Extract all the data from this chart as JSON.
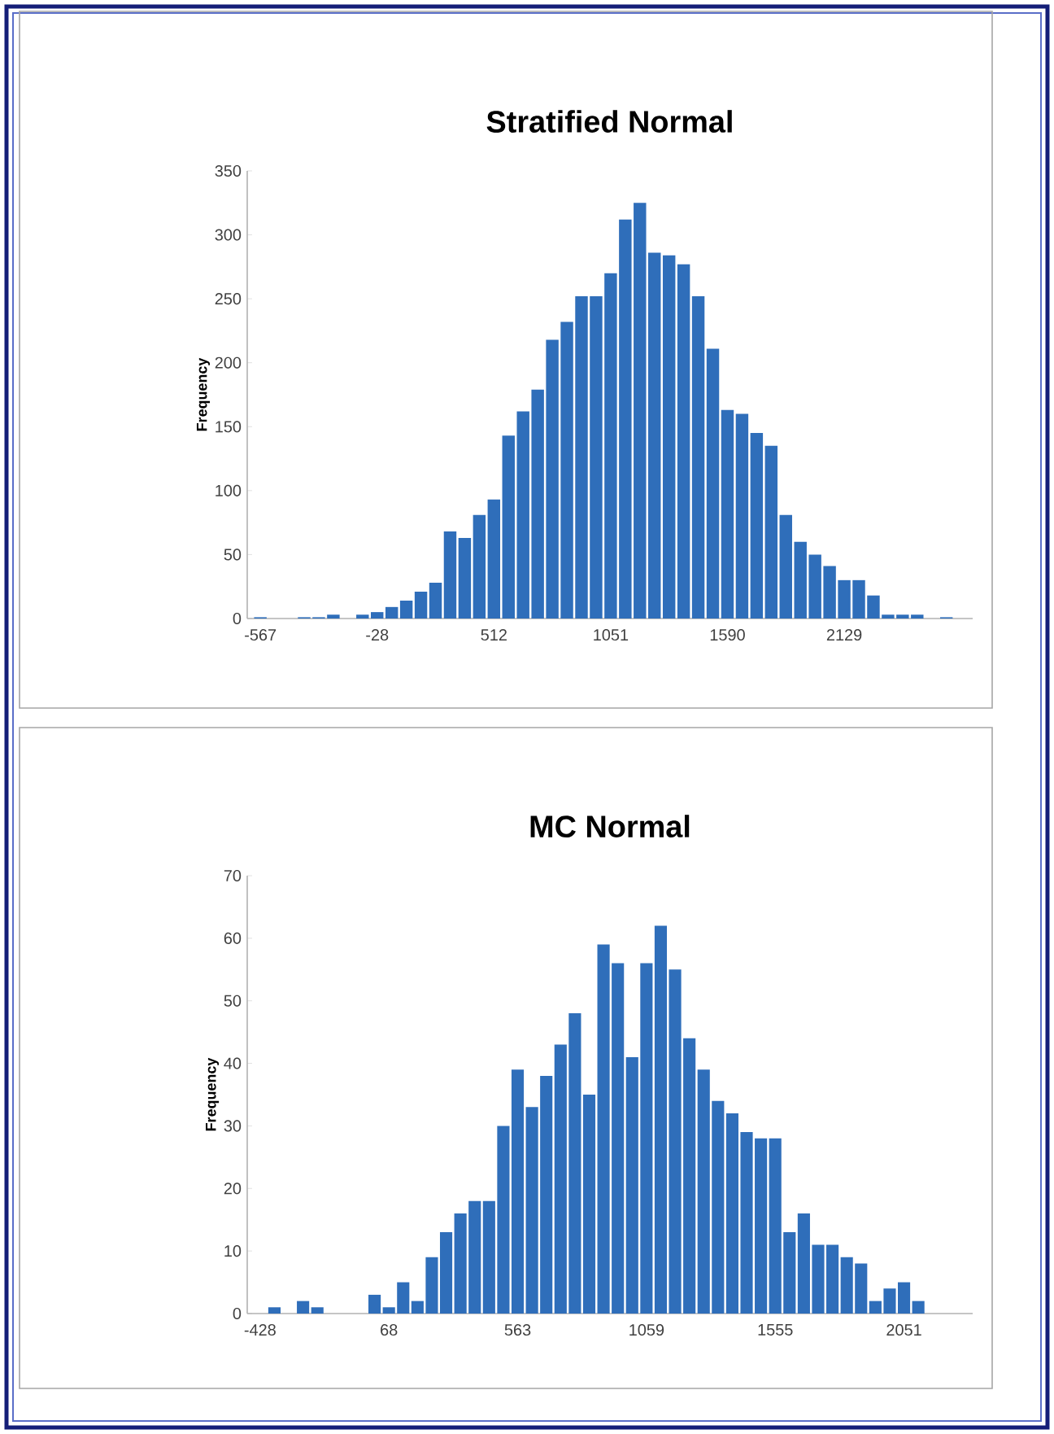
{
  "chart_data": [
    {
      "type": "bar",
      "title": "Stratified Normal",
      "ylabel": "Frequency",
      "color": "#2f6eba",
      "ylim": [
        0,
        350
      ],
      "yticks": [
        0,
        50,
        100,
        150,
        200,
        250,
        300,
        350
      ],
      "categories": [
        "-567",
        null,
        null,
        null,
        null,
        null,
        null,
        null,
        "-28",
        null,
        null,
        null,
        null,
        null,
        null,
        null,
        "512",
        null,
        null,
        null,
        null,
        null,
        null,
        null,
        "1051",
        null,
        null,
        null,
        null,
        null,
        null,
        null,
        "1590",
        null,
        null,
        null,
        null,
        null,
        null,
        null,
        "2129",
        null,
        null,
        null,
        null,
        null,
        null,
        null,
        null
      ],
      "values": [
        1,
        0,
        0,
        1,
        1,
        3,
        0,
        3,
        5,
        9,
        14,
        21,
        28,
        68,
        63,
        81,
        93,
        143,
        162,
        179,
        218,
        232,
        252,
        252,
        270,
        312,
        325,
        286,
        284,
        277,
        252,
        211,
        163,
        160,
        145,
        135,
        81,
        60,
        50,
        41,
        30,
        30,
        18,
        3,
        3,
        3,
        0,
        1,
        0
      ]
    },
    {
      "type": "bar",
      "title": "MC Normal",
      "ylabel": "Frequency",
      "color": "#2f6eba",
      "ylim": [
        0,
        70
      ],
      "yticks": [
        0,
        10,
        20,
        30,
        40,
        50,
        60,
        70
      ],
      "categories": [
        "-428",
        null,
        null,
        null,
        null,
        null,
        null,
        null,
        null,
        "68",
        null,
        null,
        null,
        null,
        null,
        null,
        null,
        null,
        "563",
        null,
        null,
        null,
        null,
        null,
        null,
        null,
        null,
        "1059",
        null,
        null,
        null,
        null,
        null,
        null,
        null,
        null,
        "1555",
        null,
        null,
        null,
        null,
        null,
        null,
        null,
        null,
        "2051",
        null,
        null,
        null,
        null
      ],
      "values": [
        0,
        1,
        0,
        2,
        1,
        0,
        0,
        0,
        3,
        1,
        5,
        2,
        9,
        13,
        16,
        18,
        18,
        30,
        39,
        33,
        38,
        43,
        48,
        35,
        59,
        56,
        41,
        56,
        62,
        55,
        44,
        39,
        34,
        32,
        29,
        28,
        28,
        13,
        16,
        11,
        11,
        9,
        8,
        2,
        4,
        5,
        2,
        0,
        0,
        0
      ]
    }
  ]
}
